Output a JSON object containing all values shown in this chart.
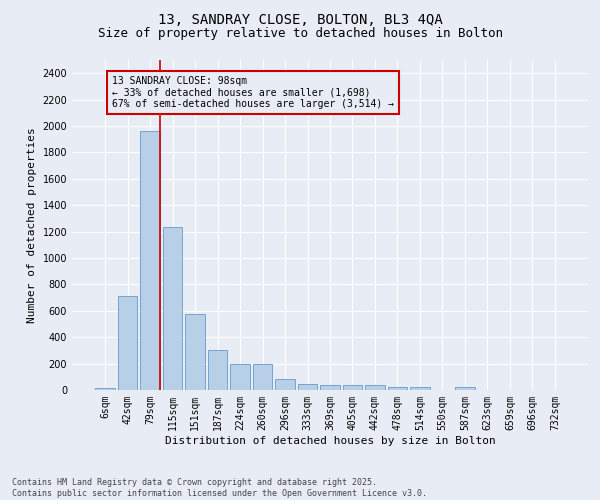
{
  "title_line1": "13, SANDRAY CLOSE, BOLTON, BL3 4QA",
  "title_line2": "Size of property relative to detached houses in Bolton",
  "xlabel": "Distribution of detached houses by size in Bolton",
  "ylabel": "Number of detached properties",
  "categories": [
    "6sqm",
    "42sqm",
    "79sqm",
    "115sqm",
    "151sqm",
    "187sqm",
    "224sqm",
    "260sqm",
    "296sqm",
    "333sqm",
    "369sqm",
    "405sqm",
    "442sqm",
    "478sqm",
    "514sqm",
    "550sqm",
    "587sqm",
    "623sqm",
    "659sqm",
    "696sqm",
    "732sqm"
  ],
  "values": [
    15,
    710,
    1960,
    1235,
    575,
    305,
    200,
    200,
    80,
    45,
    40,
    35,
    35,
    20,
    20,
    0,
    20,
    0,
    0,
    0,
    0
  ],
  "bar_color": "#b8cfe8",
  "bar_edge_color": "#6699cc",
  "vline_color": "#cc0000",
  "annotation_text": "13 SANDRAY CLOSE: 98sqm\n← 33% of detached houses are smaller (1,698)\n67% of semi-detached houses are larger (3,514) →",
  "annotation_box_color": "#cc0000",
  "ylim": [
    0,
    2500
  ],
  "yticks": [
    0,
    200,
    400,
    600,
    800,
    1000,
    1200,
    1400,
    1600,
    1800,
    2000,
    2200,
    2400
  ],
  "footer_text": "Contains HM Land Registry data © Crown copyright and database right 2025.\nContains public sector information licensed under the Open Government Licence v3.0.",
  "bg_color": "#e8edf5",
  "grid_color": "#ffffff",
  "title_fontsize": 10,
  "subtitle_fontsize": 9,
  "axis_fontsize": 8,
  "tick_fontsize": 7,
  "footer_fontsize": 6
}
